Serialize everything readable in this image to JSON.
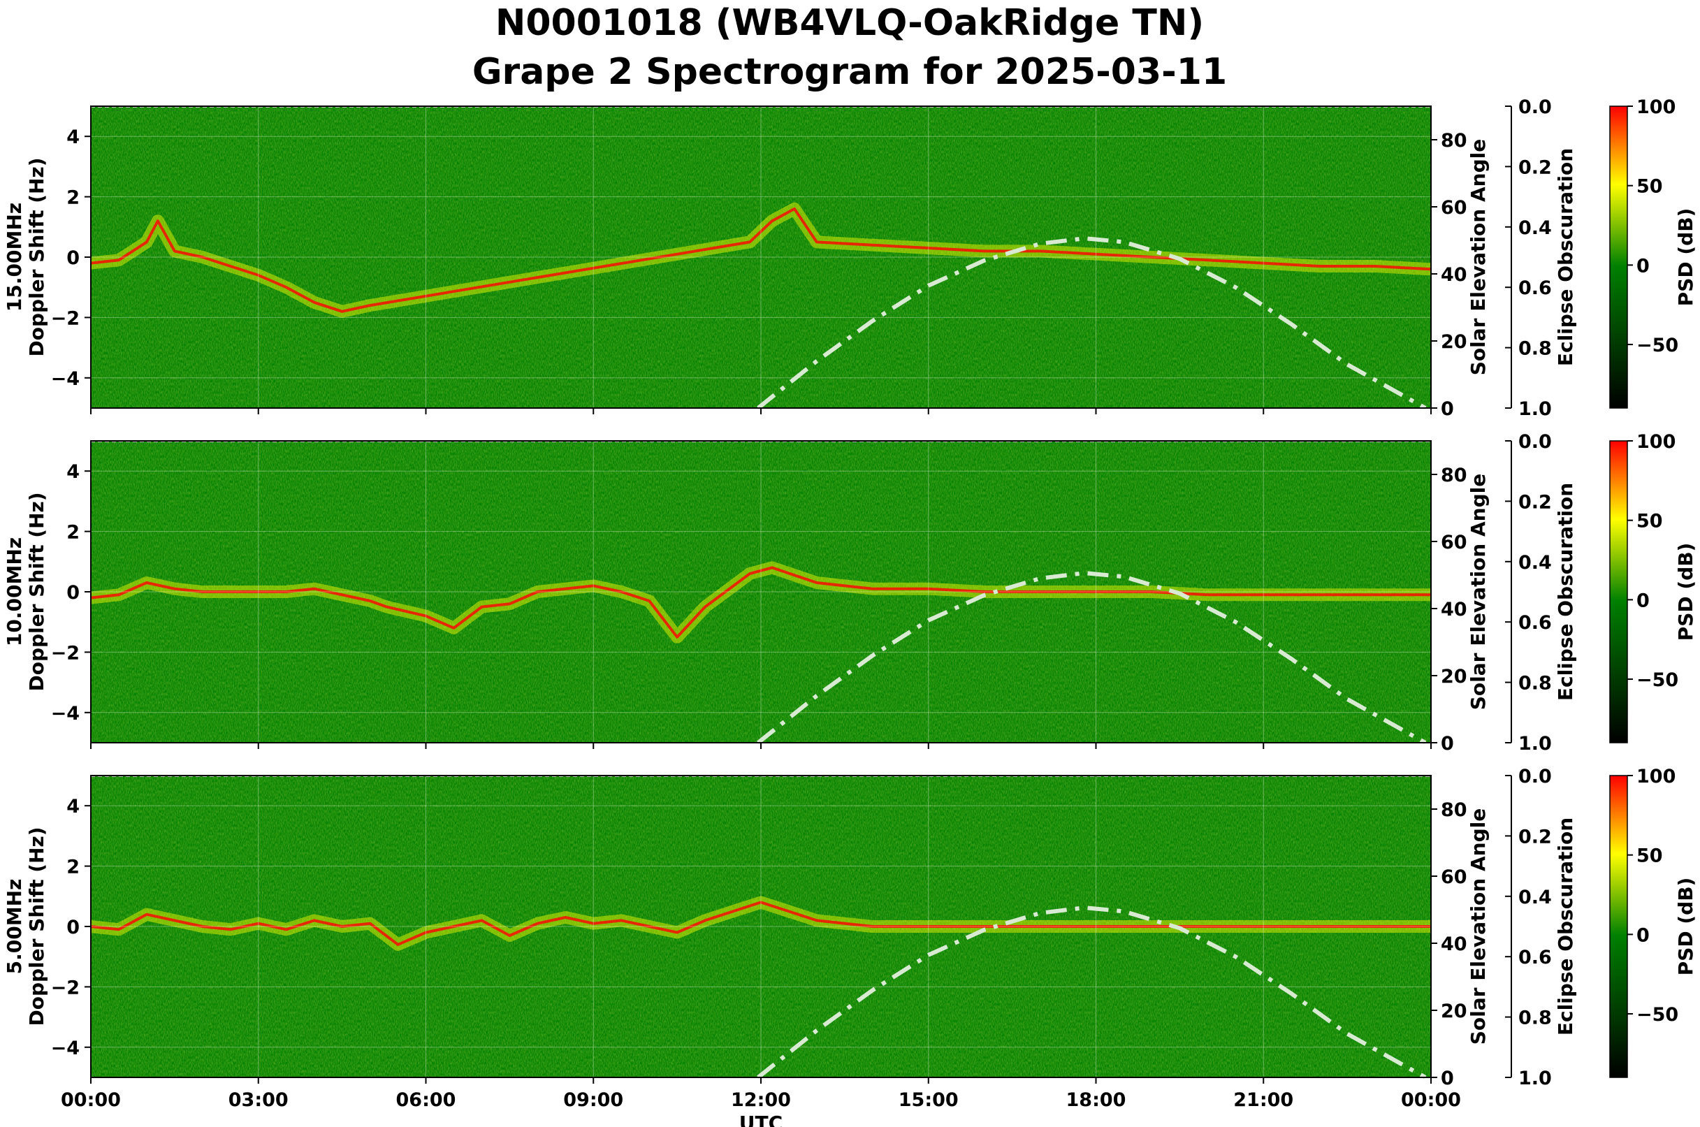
{
  "title": {
    "line1": "N0001018 (WB4VLQ-OakRidge TN)",
    "line2": "Grape 2 Spectrogram for 2025-03-11"
  },
  "colors": {
    "low": "#000000",
    "mid": "#008000",
    "midhigh": "#ffff00",
    "high": "#ff0000",
    "solar_curve": "#d9ead3"
  },
  "chart_data": {
    "type": "heatmap",
    "xlabel": "UTC",
    "x_ticks": [
      "00:00",
      "03:00",
      "06:00",
      "09:00",
      "12:00",
      "15:00",
      "18:00",
      "21:00",
      "00:00"
    ],
    "x_range_hours": [
      0,
      24
    ],
    "y_ticks": [
      "4",
      "2",
      "0",
      "−2",
      "−4"
    ],
    "y_values": [
      4,
      2,
      0,
      -2,
      -4
    ],
    "ylim": [
      -5,
      5
    ],
    "right_ticks": [
      "80",
      "60",
      "40",
      "20",
      "0"
    ],
    "right_values": [
      80,
      60,
      40,
      20,
      0
    ],
    "right_range": [
      0,
      90
    ],
    "eclipse_ticks": [
      "0.0",
      "0.2",
      "0.4",
      "0.6",
      "0.8",
      "1.0"
    ],
    "eclipse_values": [
      0,
      0.2,
      0.4,
      0.6,
      0.8,
      1.0
    ],
    "colorbar_ticks": [
      "100",
      "50",
      "0",
      "−50"
    ],
    "colorbar_values": [
      100,
      50,
      0,
      -50
    ],
    "colorbar_range": [
      -90,
      100
    ],
    "grid": true,
    "panels": [
      {
        "name": "15.00MHz",
        "ylabel": "Doppler Shift (Hz)",
        "right_label": "Solar Elevation Angle",
        "eclipse_label": "Eclipse Obscuration",
        "colorbar_label": "PSD (dB)",
        "doppler_trace": [
          [
            0,
            -0.2
          ],
          [
            0.5,
            -0.1
          ],
          [
            1,
            0.5
          ],
          [
            1.2,
            1.2
          ],
          [
            1.5,
            0.2
          ],
          [
            2,
            0
          ],
          [
            2.5,
            -0.3
          ],
          [
            3,
            -0.6
          ],
          [
            3.5,
            -1
          ],
          [
            4,
            -1.5
          ],
          [
            4.5,
            -1.8
          ],
          [
            5,
            -1.6
          ],
          [
            11.8,
            0.5
          ],
          [
            12.2,
            1.2
          ],
          [
            12.6,
            1.6
          ],
          [
            13,
            0.5
          ],
          [
            14,
            0.4
          ],
          [
            15,
            0.3
          ],
          [
            16,
            0.2
          ],
          [
            17,
            0.2
          ],
          [
            18,
            0.1
          ],
          [
            19,
            0
          ],
          [
            20,
            -0.1
          ],
          [
            21,
            -0.2
          ],
          [
            22,
            -0.3
          ],
          [
            23,
            -0.3
          ],
          [
            24,
            -0.4
          ]
        ]
      },
      {
        "name": "10.00MHz",
        "ylabel": "Doppler Shift (Hz)",
        "right_label": "Solar Elevation Angle",
        "eclipse_label": "Eclipse Obscuration",
        "colorbar_label": "PSD (dB)",
        "doppler_trace": [
          [
            0,
            -0.2
          ],
          [
            0.5,
            -0.1
          ],
          [
            1,
            0.3
          ],
          [
            1.5,
            0.1
          ],
          [
            2,
            0
          ],
          [
            2.5,
            0
          ],
          [
            3,
            0
          ],
          [
            3.5,
            0
          ],
          [
            4,
            0.1
          ],
          [
            4.5,
            -0.1
          ],
          [
            5,
            -0.3
          ],
          [
            5.3,
            -0.5
          ],
          [
            6,
            -0.8
          ],
          [
            6.5,
            -1.2
          ],
          [
            7,
            -0.5
          ],
          [
            7.5,
            -0.4
          ],
          [
            8,
            0
          ],
          [
            9,
            0.2
          ],
          [
            9.5,
            0
          ],
          [
            10,
            -0.3
          ],
          [
            10.5,
            -1.5
          ],
          [
            11,
            -0.5
          ],
          [
            11.8,
            0.6
          ],
          [
            12.2,
            0.8
          ],
          [
            13,
            0.3
          ],
          [
            14,
            0.1
          ],
          [
            15,
            0.1
          ],
          [
            16,
            0
          ],
          [
            17,
            0
          ],
          [
            18,
            0
          ],
          [
            19,
            0
          ],
          [
            20,
            -0.1
          ],
          [
            21,
            -0.1
          ],
          [
            22,
            -0.1
          ],
          [
            23,
            -0.1
          ],
          [
            24,
            -0.1
          ]
        ]
      },
      {
        "name": "5.00MHz",
        "ylabel": "Doppler Shift (Hz)",
        "right_label": "Solar Elevation Angle",
        "eclipse_label": "Eclipse Obscuration",
        "colorbar_label": "PSD (dB)",
        "doppler_trace": [
          [
            0,
            0
          ],
          [
            0.5,
            -0.1
          ],
          [
            1,
            0.4
          ],
          [
            1.5,
            0.2
          ],
          [
            2,
            0
          ],
          [
            2.5,
            -0.1
          ],
          [
            3,
            0.1
          ],
          [
            3.5,
            -0.1
          ],
          [
            4,
            0.2
          ],
          [
            4.5,
            0
          ],
          [
            5,
            0.1
          ],
          [
            5.5,
            -0.6
          ],
          [
            6,
            -0.2
          ],
          [
            6.5,
            0
          ],
          [
            7,
            0.2
          ],
          [
            7.5,
            -0.3
          ],
          [
            8,
            0.1
          ],
          [
            8.5,
            0.3
          ],
          [
            9,
            0.1
          ],
          [
            9.5,
            0.2
          ],
          [
            10,
            0
          ],
          [
            10.5,
            -0.2
          ],
          [
            11,
            0.2
          ],
          [
            11.5,
            0.5
          ],
          [
            12,
            0.8
          ],
          [
            12.5,
            0.5
          ],
          [
            13,
            0.2
          ],
          [
            14,
            0
          ],
          [
            15,
            0
          ],
          [
            16,
            0
          ],
          [
            17,
            0
          ],
          [
            18,
            0
          ],
          [
            19,
            0
          ],
          [
            20,
            0
          ],
          [
            21,
            0
          ],
          [
            22,
            0
          ],
          [
            23,
            0
          ],
          [
            24,
            0
          ]
        ]
      }
    ],
    "solar_elevation": [
      [
        11.95,
        0
      ],
      [
        13,
        14
      ],
      [
        14,
        26
      ],
      [
        15,
        36.5
      ],
      [
        16,
        44
      ],
      [
        17,
        49
      ],
      [
        17.8,
        50.6
      ],
      [
        18.5,
        49.5
      ],
      [
        19.5,
        44.5
      ],
      [
        20.5,
        36
      ],
      [
        21.5,
        25
      ],
      [
        22.5,
        13
      ],
      [
        23.9,
        0
      ]
    ]
  }
}
